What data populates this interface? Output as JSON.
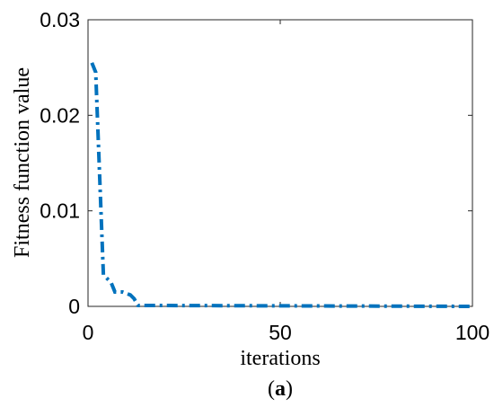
{
  "chart_data": {
    "type": "line",
    "xlabel": "iterations",
    "ylabel": "Fitness function value",
    "caption": {
      "open": "(",
      "letter": "a",
      "close": ")"
    },
    "xlim": [
      0,
      100
    ],
    "ylim": [
      0,
      0.03
    ],
    "xticks": [
      0,
      50,
      100
    ],
    "xtick_labels": [
      "0",
      "50",
      "100"
    ],
    "yticks": [
      0,
      0.01,
      0.02,
      0.03
    ],
    "ytick_labels": [
      "0",
      "0.01",
      "0.02",
      "0.03"
    ],
    "grid": false,
    "line_style": "dash-dot",
    "color": "#0072BD",
    "series": [
      {
        "x": [
          1,
          2,
          4,
          6,
          7,
          9,
          11,
          12,
          13,
          100
        ],
        "y": [
          0.0255,
          0.0245,
          0.0033,
          0.0025,
          0.0015,
          0.0015,
          0.0012,
          0.0008,
          0.0001,
          0.0
        ]
      }
    ]
  }
}
